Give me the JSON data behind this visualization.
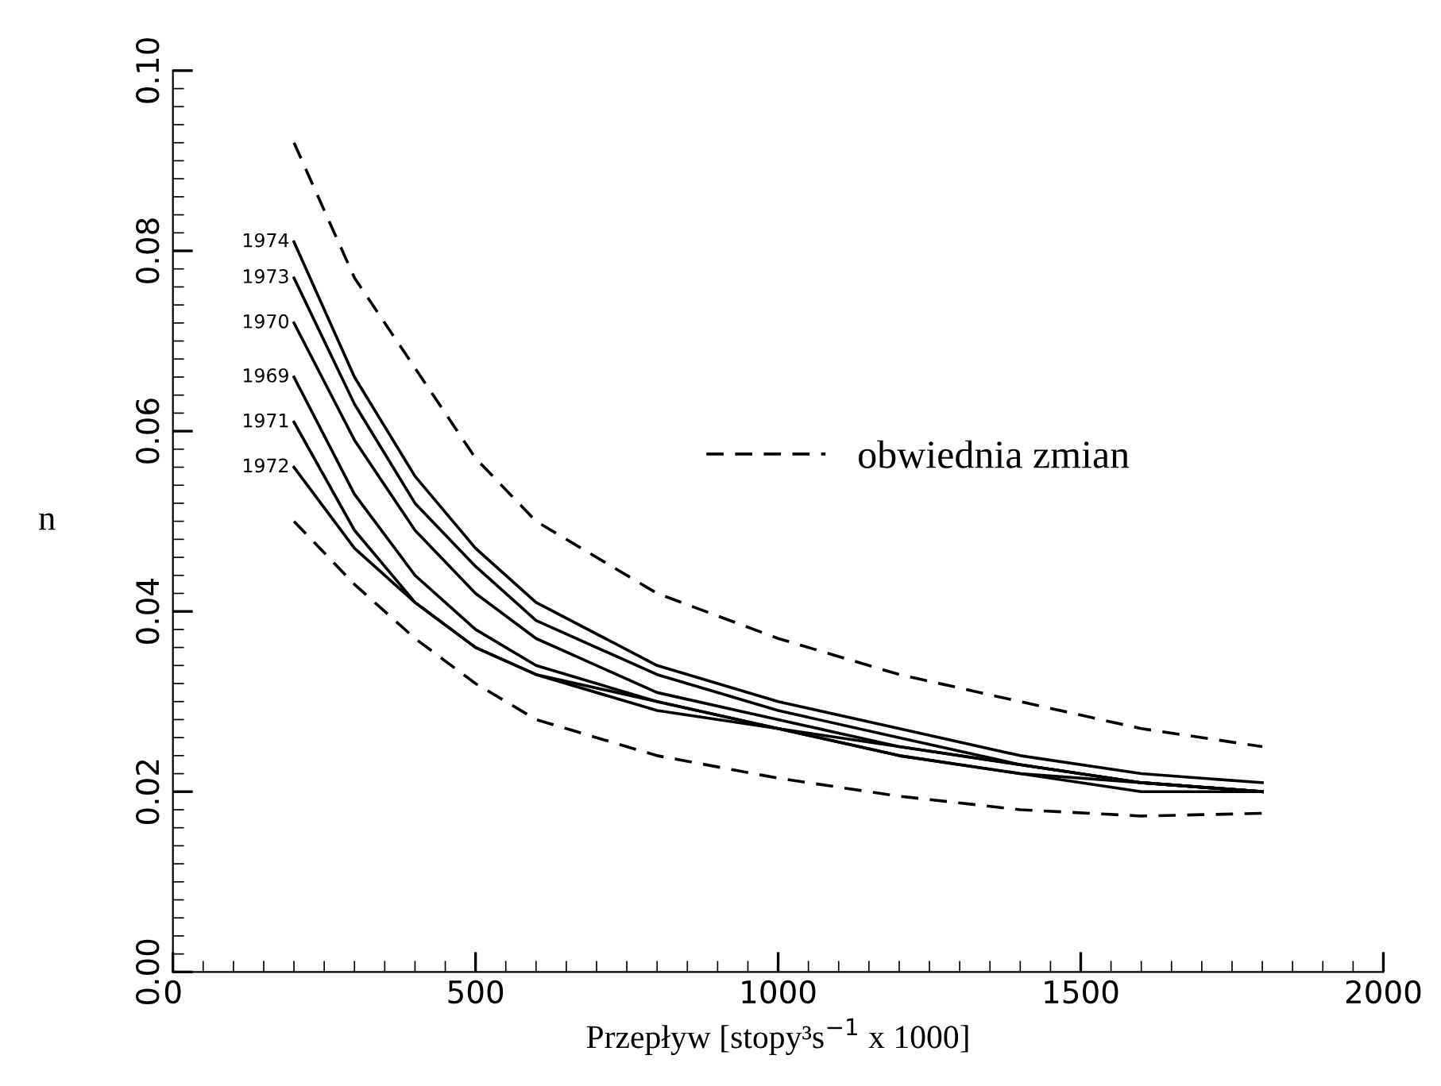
{
  "chart_data": {
    "type": "line",
    "xlabel": "Przepływ [stopy³s$^{−1}$ x 1000]",
    "ylabel": "n",
    "xlim": [
      0,
      2000
    ],
    "ylim": [
      0,
      0.1
    ],
    "xticks": [
      0,
      500,
      1000,
      1500,
      2000
    ],
    "yticks": [
      {
        "value": 0,
        "label": "0.00"
      },
      {
        "value": 0.02,
        "label": "0.02"
      },
      {
        "value": 0.04,
        "label": "0.04"
      },
      {
        "value": 0.06,
        "label": "0.06"
      },
      {
        "value": 0.08,
        "label": "0.08"
      },
      {
        "value": 0.1,
        "label": "0.10"
      }
    ],
    "x": [
      200,
      300,
      400,
      500,
      600,
      800,
      1000,
      1200,
      1400,
      1600,
      1800
    ],
    "grid": false,
    "legend": "right",
    "legend_title": null,
    "marker": "none",
    "series": [
      {
        "name": "obwiednia zmian",
        "color": "#000000",
        "line_style": "dashed",
        "values": [
          0.092,
          0.077,
          0.067,
          0.057,
          0.05,
          0.042,
          0.037,
          0.033,
          0.03,
          0.027,
          0.025
        ]
      },
      {
        "name": "1974",
        "color": "#000000",
        "line_style": "solid",
        "values": [
          0.081,
          0.066,
          0.055,
          0.047,
          0.041,
          0.034,
          0.03,
          0.027,
          0.024,
          0.022,
          0.021
        ]
      },
      {
        "name": "1973",
        "color": "#000000",
        "line_style": "solid",
        "values": [
          0.077,
          0.063,
          0.052,
          0.045,
          0.039,
          0.033,
          0.029,
          0.026,
          0.023,
          0.021,
          0.02
        ]
      },
      {
        "name": "1970",
        "color": "#000000",
        "line_style": "solid",
        "values": [
          0.072,
          0.059,
          0.049,
          0.042,
          0.037,
          0.031,
          0.028,
          0.025,
          0.023,
          0.021,
          0.02
        ]
      },
      {
        "name": "1969",
        "color": "#000000",
        "line_style": "solid",
        "values": [
          0.066,
          0.053,
          0.044,
          0.038,
          0.034,
          0.03,
          0.027,
          0.025,
          0.023,
          0.021,
          0.02
        ]
      },
      {
        "name": "1971",
        "color": "#000000",
        "line_style": "solid",
        "values": [
          0.061,
          0.049,
          0.041,
          0.036,
          0.033,
          0.029,
          0.027,
          0.024,
          0.022,
          0.021,
          0.02
        ]
      },
      {
        "name": "1972",
        "color": "#000000",
        "line_style": "solid",
        "values": [
          0.056,
          0.047,
          0.041,
          0.036,
          0.033,
          0.03,
          0.027,
          0.024,
          0.022,
          0.02,
          0.02
        ]
      },
      {
        "color": "#000000",
        "line_style": "dashed",
        "values": [
          0.05,
          0.043,
          0.037,
          0.032,
          0.028,
          0.024,
          0.0215,
          0.0195,
          0.018,
          0.0173,
          0.0176
        ]
      }
    ]
  }
}
